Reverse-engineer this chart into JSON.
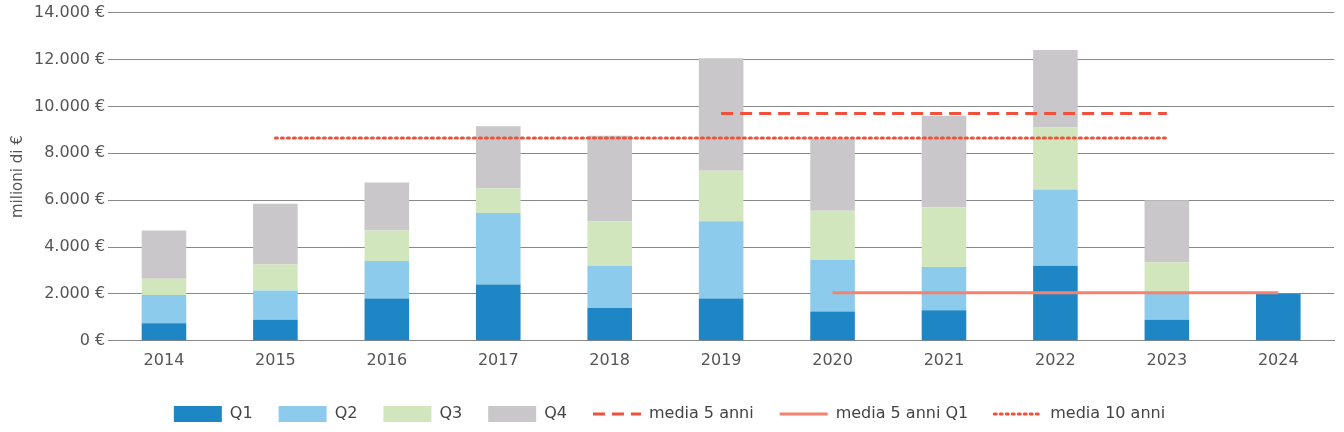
{
  "chart_data": {
    "type": "bar",
    "stacked": true,
    "ylabel": "milioni di €",
    "categories": [
      "2014",
      "2015",
      "2016",
      "2017",
      "2018",
      "2019",
      "2020",
      "2021",
      "2022",
      "2023",
      "2024"
    ],
    "series": [
      {
        "name": "Q1",
        "color": "#1f86c6",
        "values": [
          750,
          900,
          1800,
          2400,
          1400,
          1800,
          1250,
          1300,
          3200,
          900,
          2000
        ]
      },
      {
        "name": "Q2",
        "color": "#8ccbeb",
        "values": [
          1200,
          1250,
          1600,
          3050,
          1800,
          3300,
          2200,
          1850,
          3250,
          1100,
          null
        ]
      },
      {
        "name": "Q3",
        "color": "#d2e6bd",
        "values": [
          700,
          1100,
          1300,
          1050,
          1900,
          2150,
          2100,
          2550,
          2650,
          1350,
          null
        ]
      },
      {
        "name": "Q4",
        "color": "#c9c7c9",
        "values": [
          2050,
          2600,
          2050,
          2650,
          3650,
          4800,
          3050,
          3900,
          3300,
          2650,
          null
        ]
      },
      {
        "name": "media 5 anni",
        "type": "line",
        "line_style": "dashed",
        "color": "#f0503c",
        "values": [
          null,
          null,
          null,
          null,
          null,
          9700,
          9700,
          9700,
          9700,
          9700,
          null
        ]
      },
      {
        "name": "media 5 anni Q1",
        "type": "line",
        "line_style": "solid",
        "color": "#f4826e",
        "values": [
          null,
          null,
          null,
          null,
          null,
          null,
          2050,
          2050,
          2050,
          2050,
          2050
        ]
      },
      {
        "name": "media 10 anni",
        "type": "line",
        "line_style": "dotted",
        "color": "#f0503c",
        "values": [
          null,
          8650,
          8650,
          8650,
          8650,
          8650,
          8650,
          8650,
          8650,
          8650,
          null
        ]
      }
    ],
    "ylim": [
      0,
      14000
    ],
    "yticks": [
      {
        "value": 0,
        "label": "0 €"
      },
      {
        "value": 2000,
        "label": "2.000 €"
      },
      {
        "value": 4000,
        "label": "4.000 €"
      },
      {
        "value": 6000,
        "label": "6.000 €"
      },
      {
        "value": 8000,
        "label": "8.000 €"
      },
      {
        "value": 10000,
        "label": "10.000 €"
      },
      {
        "value": 12000,
        "label": "12.000 €"
      },
      {
        "value": 14000,
        "label": "14.000 €"
      }
    ],
    "grid": "y",
    "legend": "bottom",
    "marker": "none"
  }
}
